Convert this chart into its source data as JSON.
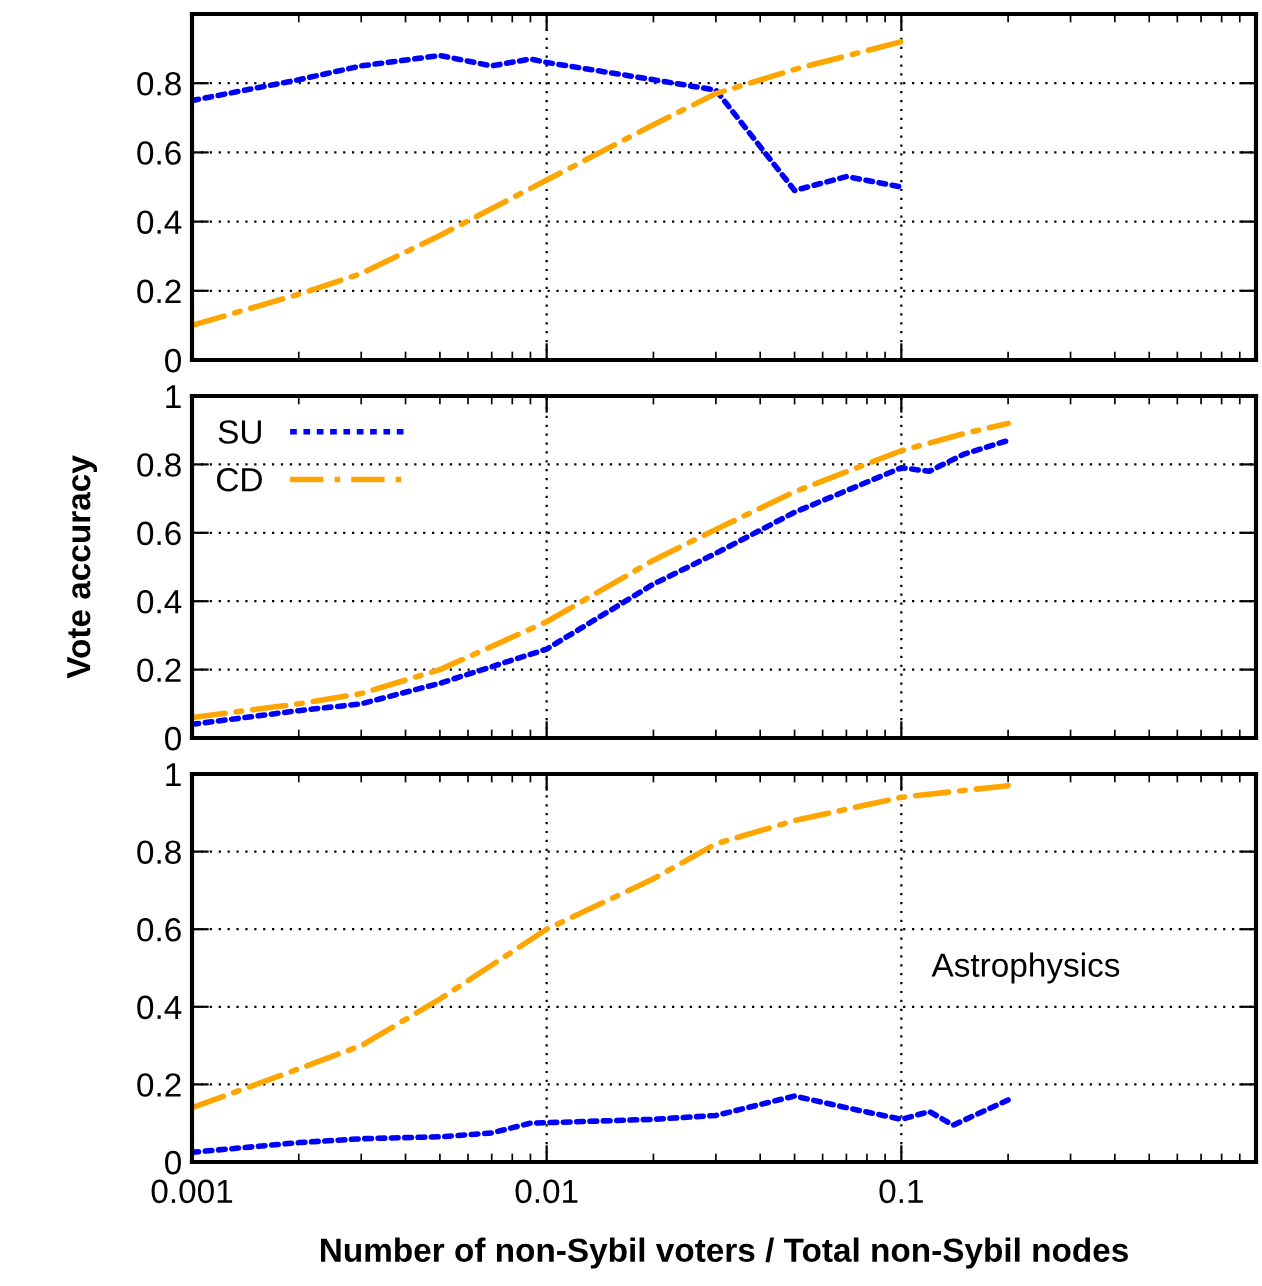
{
  "chart_data": [
    {
      "type": "line",
      "log": "x",
      "xlim": [
        0.001,
        1
      ],
      "xticks": [
        0.001,
        0.01,
        0.1
      ],
      "ylim": [
        0,
        1
      ],
      "yticks": [
        0,
        0.2,
        0.4,
        0.6,
        0.8,
        {
          "value": 1,
          "label": null
        }
      ],
      "grid": true,
      "tick_labels": "y",
      "legend": false,
      "series": [
        {
          "x": [
            0.001,
            0.002,
            0.003,
            0.005,
            0.007,
            0.009,
            0.01,
            0.02,
            0.03,
            0.05,
            0.07,
            0.1
          ],
          "values": [
            0.75,
            0.81,
            0.85,
            0.88,
            0.85,
            0.87,
            0.86,
            0.81,
            0.78,
            0.49,
            0.53,
            0.5
          ],
          "color": "#0000ff",
          "line_style": "dotted"
        },
        {
          "x": [
            0.001,
            0.002,
            0.003,
            0.005,
            0.01,
            0.02,
            0.03,
            0.05,
            0.1
          ],
          "values": [
            0.1,
            0.19,
            0.25,
            0.36,
            0.52,
            0.68,
            0.77,
            0.84,
            0.92
          ],
          "color": "#ffa500",
          "line_style": "dashdot"
        }
      ]
    },
    {
      "type": "line",
      "log": "x",
      "xlim": [
        0.001,
        1
      ],
      "xticks": [
        0.001,
        0.01,
        0.1
      ],
      "ylim": [
        0,
        1
      ],
      "yticks": [
        0,
        0.2,
        0.4,
        0.6,
        0.8,
        1
      ],
      "grid": true,
      "tick_labels": "y",
      "legend": "top left",
      "ylabel": "Vote accuracy",
      "series": [
        {
          "name": "SU",
          "x": [
            0.001,
            0.002,
            0.003,
            0.005,
            0.01,
            0.02,
            0.03,
            0.05,
            0.1,
            0.12,
            0.15,
            0.2
          ],
          "values": [
            0.04,
            0.08,
            0.1,
            0.16,
            0.26,
            0.45,
            0.54,
            0.66,
            0.79,
            0.78,
            0.83,
            0.87
          ],
          "color": "#0000ff",
          "line_style": "dotted"
        },
        {
          "name": "CD",
          "x": [
            0.001,
            0.002,
            0.003,
            0.005,
            0.01,
            0.02,
            0.03,
            0.05,
            0.1,
            0.15,
            0.2
          ],
          "values": [
            0.06,
            0.1,
            0.13,
            0.2,
            0.34,
            0.52,
            0.61,
            0.72,
            0.84,
            0.89,
            0.92
          ],
          "color": "#ffa500",
          "line_style": "dashdot"
        }
      ]
    },
    {
      "type": "line",
      "log": "x",
      "xlim": [
        0.001,
        1
      ],
      "xticks": [
        0.001,
        0.01,
        0.1
      ],
      "ylim": [
        0,
        1
      ],
      "yticks": [
        0,
        0.2,
        0.4,
        0.6,
        0.8,
        1
      ],
      "grid": true,
      "legend": false,
      "xlabel": "Number of non-Sybil voters / Total non-Sybil nodes",
      "annotations": [
        "Astrophysics"
      ],
      "series": [
        {
          "x": [
            0.001,
            0.002,
            0.003,
            0.005,
            0.007,
            0.009,
            0.02,
            0.03,
            0.05,
            0.07,
            0.1,
            0.12,
            0.14,
            0.2
          ],
          "values": [
            0.025,
            0.05,
            0.06,
            0.065,
            0.075,
            0.1,
            0.11,
            0.12,
            0.17,
            0.14,
            0.11,
            0.13,
            0.095,
            0.16
          ],
          "color": "#0000ff",
          "line_style": "dotted"
        },
        {
          "x": [
            0.001,
            0.002,
            0.003,
            0.005,
            0.01,
            0.02,
            0.03,
            0.05,
            0.1,
            0.2
          ],
          "values": [
            0.14,
            0.24,
            0.3,
            0.42,
            0.6,
            0.73,
            0.82,
            0.88,
            0.94,
            0.97
          ],
          "color": "#ffa500",
          "line_style": "dashdot"
        }
      ]
    }
  ]
}
